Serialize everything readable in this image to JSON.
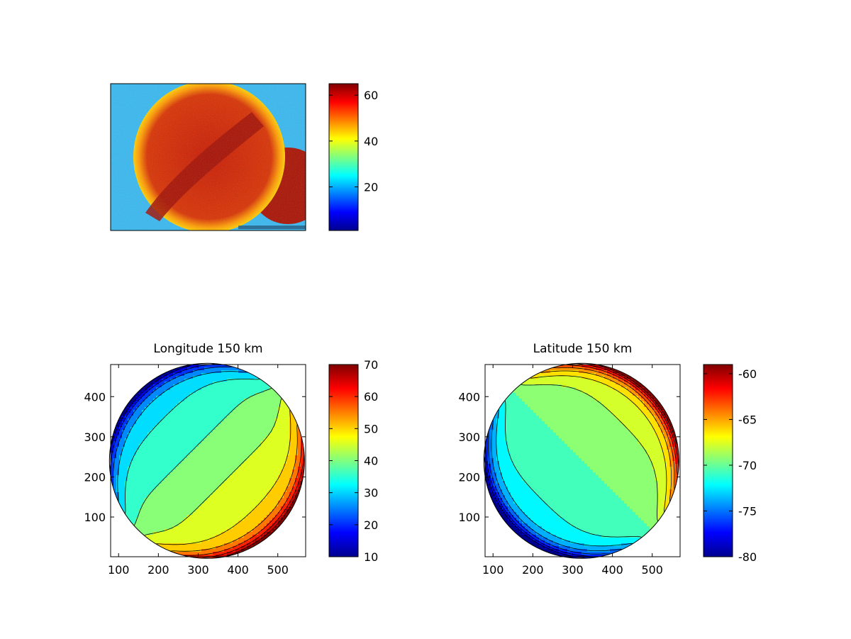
{
  "chart_data": [
    {
      "type": "heatmap",
      "title": "",
      "description_kind": "image",
      "colorbar": {
        "range": [
          1,
          65
        ],
        "ticks": [
          20,
          40,
          60
        ]
      }
    },
    {
      "type": "contour",
      "title": "Longitude 150 km",
      "xlabel": "",
      "ylabel": "",
      "xlim": [
        80,
        570
      ],
      "ylim": [
        1,
        480
      ],
      "xticks": [
        100,
        200,
        300,
        400,
        500
      ],
      "yticks": [
        100,
        200,
        300,
        400
      ],
      "disk": {
        "cx": 322,
        "cy": 240,
        "r": 245
      },
      "stripe_direction": "lower-left to upper-right",
      "levels": [
        13,
        18,
        23,
        28,
        33,
        38,
        43,
        48,
        53,
        58,
        63,
        68
      ],
      "colorbar": {
        "range": [
          10,
          70
        ],
        "ticks": [
          10,
          20,
          30,
          40,
          50,
          60,
          70
        ]
      }
    },
    {
      "type": "contour",
      "title": "Latitude 150 km",
      "xlabel": "",
      "ylabel": "",
      "xlim": [
        80,
        570
      ],
      "ylim": [
        1,
        480
      ],
      "xticks": [
        100,
        200,
        300,
        400,
        500
      ],
      "yticks": [
        100,
        200,
        300,
        400
      ],
      "disk": {
        "cx": 322,
        "cy": 240,
        "r": 245
      },
      "stripe_direction": "upper-left to lower-right",
      "levels": [
        -79,
        -77.5,
        -76,
        -74.5,
        -73,
        -71.5,
        -70,
        -68.5,
        -67,
        -65.5,
        -64,
        -62.5,
        -61,
        -59.5
      ],
      "colorbar": {
        "range": [
          -80,
          -59
        ],
        "ticks": [
          -80,
          -75,
          -70,
          -65,
          -60
        ]
      }
    }
  ]
}
